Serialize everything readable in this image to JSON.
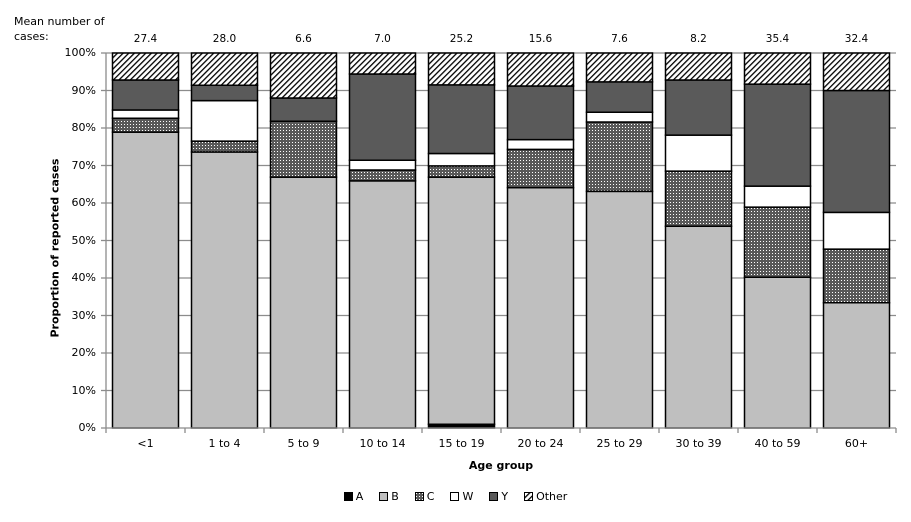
{
  "chart_data": {
    "type": "bar",
    "stacked": true,
    "normalized": true,
    "title": "",
    "header_label": "Mean number of cases:",
    "xlabel": "Age group",
    "ylabel": "Proportion of reported cases",
    "ylim": [
      0,
      100
    ],
    "yticks": [
      "0%",
      "10%",
      "20%",
      "30%",
      "40%",
      "50%",
      "60%",
      "70%",
      "80%",
      "90%",
      "100%"
    ],
    "grid": true,
    "legend_position": "bottom",
    "categories": [
      "<1",
      "1 to 4",
      "5 to 9",
      "10 to 14",
      "15 to 19",
      "20 to 24",
      "25 to 29",
      "30 to 39",
      "40 to 59",
      "60+"
    ],
    "mean_cases": [
      "27.4",
      "28.0",
      "6.6",
      "7.0",
      "25.2",
      "15.6",
      "7.6",
      "8.2",
      "35.4",
      "32.4"
    ],
    "series": [
      {
        "name": "A",
        "fill": "#000000",
        "pattern": "solid",
        "values": [
          0,
          0,
          0,
          0,
          1.0,
          0,
          0,
          0,
          0,
          0
        ]
      },
      {
        "name": "B",
        "fill": "#bfbfbf",
        "pattern": "solid",
        "values": [
          78.9,
          73.6,
          66.9,
          65.9,
          65.9,
          64.1,
          63.1,
          53.8,
          40.2,
          33.4
        ]
      },
      {
        "name": "C",
        "fill": "#595959",
        "pattern": "dots",
        "values": [
          3.7,
          2.9,
          14.9,
          2.9,
          3.0,
          10.2,
          18.5,
          14.7,
          18.7,
          14.3
        ]
      },
      {
        "name": "W",
        "fill": "#ffffff",
        "pattern": "solid",
        "values": [
          2.2,
          10.8,
          0,
          2.6,
          3.3,
          2.6,
          2.6,
          9.6,
          5.6,
          9.8
        ]
      },
      {
        "name": "Y",
        "fill": "#5a5a5a",
        "pattern": "solid",
        "values": [
          8.0,
          4.1,
          6.2,
          23.0,
          18.3,
          14.3,
          8.1,
          14.7,
          27.2,
          32.5
        ]
      },
      {
        "name": "Other",
        "fill": "#ffffff",
        "pattern": "diagonal-hatch",
        "values": [
          7.2,
          8.6,
          12.0,
          5.6,
          8.5,
          8.8,
          7.7,
          7.2,
          8.3,
          10.0
        ]
      }
    ]
  },
  "legend": [
    "A",
    "B",
    "C",
    "W",
    "Y",
    "Other"
  ]
}
